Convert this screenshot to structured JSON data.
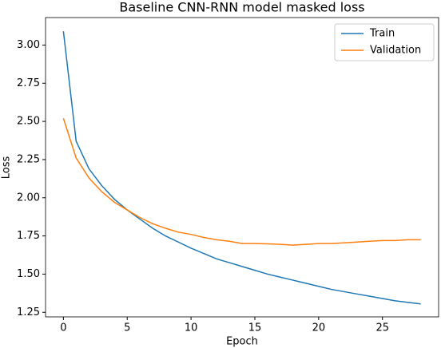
{
  "chart_data": {
    "type": "line",
    "title": "Baseline CNN-RNN model masked loss",
    "xlabel": "Epoch",
    "ylabel": "Loss",
    "x": [
      0,
      1,
      2,
      3,
      4,
      5,
      6,
      7,
      8,
      9,
      10,
      11,
      12,
      13,
      14,
      15,
      16,
      17,
      18,
      19,
      20,
      21,
      22,
      23,
      24,
      25,
      26,
      27,
      28
    ],
    "series": [
      {
        "name": "Train",
        "color": "#1f77b4",
        "values": [
          3.09,
          2.37,
          2.19,
          2.08,
          1.99,
          1.92,
          1.86,
          1.8,
          1.75,
          1.71,
          1.67,
          1.635,
          1.6,
          1.575,
          1.55,
          1.525,
          1.5,
          1.48,
          1.46,
          1.44,
          1.42,
          1.4,
          1.385,
          1.37,
          1.355,
          1.34,
          1.325,
          1.315,
          1.305
        ]
      },
      {
        "name": "Validation",
        "color": "#ff7f0e",
        "values": [
          2.52,
          2.26,
          2.13,
          2.04,
          1.97,
          1.92,
          1.87,
          1.83,
          1.8,
          1.775,
          1.76,
          1.74,
          1.725,
          1.715,
          1.7,
          1.7,
          1.698,
          1.695,
          1.69,
          1.695,
          1.7,
          1.7,
          1.705,
          1.71,
          1.715,
          1.72,
          1.72,
          1.725,
          1.725
        ]
      }
    ],
    "xlim": [
      -1.4,
      29.4
    ],
    "xticks": [
      0,
      5,
      10,
      15,
      20,
      25
    ],
    "ylim": [
      1.22,
      3.18
    ],
    "yticks": [
      1.25,
      {
        "value": 1.5,
        "label": "1.50"
      },
      1.75,
      {
        "value": 2.0,
        "label": "2.00"
      },
      2.25,
      {
        "value": 2.5,
        "label": "2.50"
      },
      2.75,
      {
        "value": 3.0,
        "label": "3.00"
      }
    ],
    "legend": "upper right",
    "grid": false
  }
}
